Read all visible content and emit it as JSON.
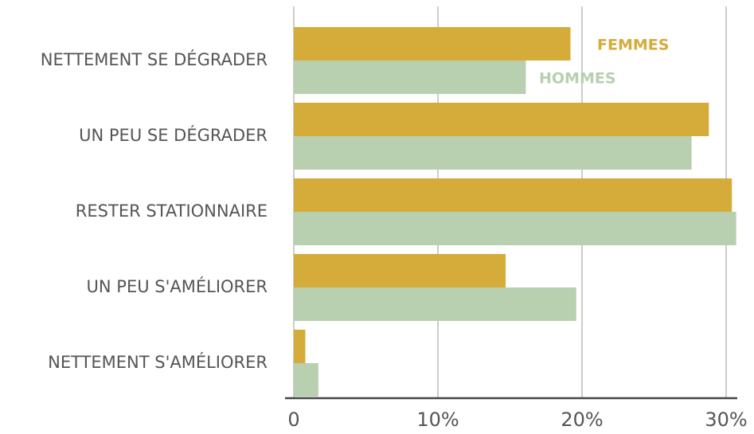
{
  "chart_data": {
    "type": "hbar",
    "categories": [
      "NETTEMENT SE DÉGRADER",
      "UN PEU SE DÉGRADER",
      "RESTER STATIONNAIRE",
      "UN PEU S'AMÉLIORER",
      "NETTEMENT S'AMÉLIORER"
    ],
    "series": [
      {
        "name": "FEMMES",
        "color": "#d5ac3a",
        "values": [
          19.2,
          28.8,
          30.4,
          14.7,
          0.8
        ]
      },
      {
        "name": "HOMMES",
        "color": "#b8cfb0",
        "values": [
          16.1,
          27.6,
          30.7,
          19.6,
          1.7
        ]
      }
    ],
    "xlim": [
      0,
      31
    ],
    "xticks": [
      0,
      {
        "value": 10,
        "label": "10%"
      },
      {
        "value": 20,
        "label": "20%"
      },
      {
        "value": 30,
        "label": "30%"
      }
    ],
    "grid": true
  }
}
